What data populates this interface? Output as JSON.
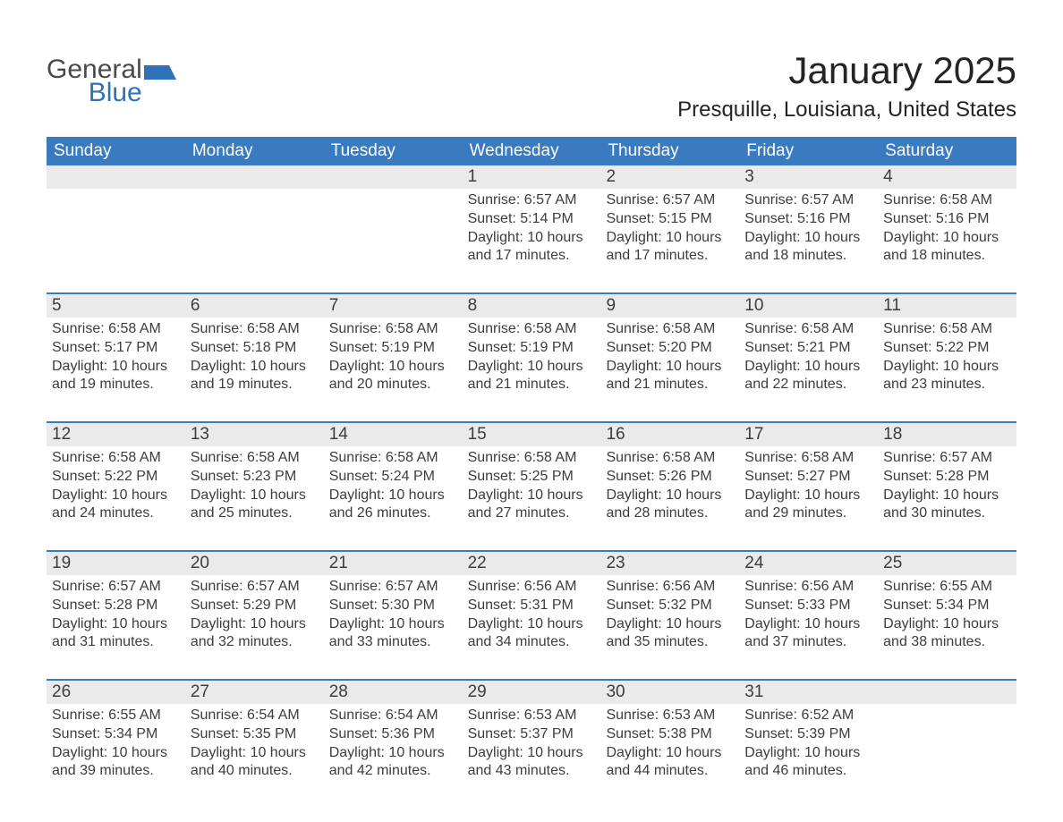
{
  "logo": {
    "general": "General",
    "blue": "Blue",
    "accent_color": "#2f72b8",
    "text_color": "#4a4a4a"
  },
  "title": "January 2025",
  "location": "Presquille, Louisiana, United States",
  "colors": {
    "header_bg": "#3a7abf",
    "header_text": "#ffffff",
    "daynum_bg": "#eaeaea",
    "body_text": "#3d3d3d",
    "week_border": "#3a7abf",
    "page_bg": "#ffffff"
  },
  "fonts": {
    "title_size_pt": 42,
    "location_size_pt": 24,
    "day_header_size_pt": 19,
    "day_num_size_pt": 19,
    "detail_size_pt": 16
  },
  "day_headers": [
    "Sunday",
    "Monday",
    "Tuesday",
    "Wednesday",
    "Thursday",
    "Friday",
    "Saturday"
  ],
  "weeks": [
    [
      {
        "blank": true
      },
      {
        "blank": true
      },
      {
        "blank": true
      },
      {
        "day": "1",
        "sunrise": "6:57 AM",
        "sunset": "5:14 PM",
        "daylight": "10 hours and 17 minutes."
      },
      {
        "day": "2",
        "sunrise": "6:57 AM",
        "sunset": "5:15 PM",
        "daylight": "10 hours and 17 minutes."
      },
      {
        "day": "3",
        "sunrise": "6:57 AM",
        "sunset": "5:16 PM",
        "daylight": "10 hours and 18 minutes."
      },
      {
        "day": "4",
        "sunrise": "6:58 AM",
        "sunset": "5:16 PM",
        "daylight": "10 hours and 18 minutes."
      }
    ],
    [
      {
        "day": "5",
        "sunrise": "6:58 AM",
        "sunset": "5:17 PM",
        "daylight": "10 hours and 19 minutes."
      },
      {
        "day": "6",
        "sunrise": "6:58 AM",
        "sunset": "5:18 PM",
        "daylight": "10 hours and 19 minutes."
      },
      {
        "day": "7",
        "sunrise": "6:58 AM",
        "sunset": "5:19 PM",
        "daylight": "10 hours and 20 minutes."
      },
      {
        "day": "8",
        "sunrise": "6:58 AM",
        "sunset": "5:19 PM",
        "daylight": "10 hours and 21 minutes."
      },
      {
        "day": "9",
        "sunrise": "6:58 AM",
        "sunset": "5:20 PM",
        "daylight": "10 hours and 21 minutes."
      },
      {
        "day": "10",
        "sunrise": "6:58 AM",
        "sunset": "5:21 PM",
        "daylight": "10 hours and 22 minutes."
      },
      {
        "day": "11",
        "sunrise": "6:58 AM",
        "sunset": "5:22 PM",
        "daylight": "10 hours and 23 minutes."
      }
    ],
    [
      {
        "day": "12",
        "sunrise": "6:58 AM",
        "sunset": "5:22 PM",
        "daylight": "10 hours and 24 minutes."
      },
      {
        "day": "13",
        "sunrise": "6:58 AM",
        "sunset": "5:23 PM",
        "daylight": "10 hours and 25 minutes."
      },
      {
        "day": "14",
        "sunrise": "6:58 AM",
        "sunset": "5:24 PM",
        "daylight": "10 hours and 26 minutes."
      },
      {
        "day": "15",
        "sunrise": "6:58 AM",
        "sunset": "5:25 PM",
        "daylight": "10 hours and 27 minutes."
      },
      {
        "day": "16",
        "sunrise": "6:58 AM",
        "sunset": "5:26 PM",
        "daylight": "10 hours and 28 minutes."
      },
      {
        "day": "17",
        "sunrise": "6:58 AM",
        "sunset": "5:27 PM",
        "daylight": "10 hours and 29 minutes."
      },
      {
        "day": "18",
        "sunrise": "6:57 AM",
        "sunset": "5:28 PM",
        "daylight": "10 hours and 30 minutes."
      }
    ],
    [
      {
        "day": "19",
        "sunrise": "6:57 AM",
        "sunset": "5:28 PM",
        "daylight": "10 hours and 31 minutes."
      },
      {
        "day": "20",
        "sunrise": "6:57 AM",
        "sunset": "5:29 PM",
        "daylight": "10 hours and 32 minutes."
      },
      {
        "day": "21",
        "sunrise": "6:57 AM",
        "sunset": "5:30 PM",
        "daylight": "10 hours and 33 minutes."
      },
      {
        "day": "22",
        "sunrise": "6:56 AM",
        "sunset": "5:31 PM",
        "daylight": "10 hours and 34 minutes."
      },
      {
        "day": "23",
        "sunrise": "6:56 AM",
        "sunset": "5:32 PM",
        "daylight": "10 hours and 35 minutes."
      },
      {
        "day": "24",
        "sunrise": "6:56 AM",
        "sunset": "5:33 PM",
        "daylight": "10 hours and 37 minutes."
      },
      {
        "day": "25",
        "sunrise": "6:55 AM",
        "sunset": "5:34 PM",
        "daylight": "10 hours and 38 minutes."
      }
    ],
    [
      {
        "day": "26",
        "sunrise": "6:55 AM",
        "sunset": "5:34 PM",
        "daylight": "10 hours and 39 minutes."
      },
      {
        "day": "27",
        "sunrise": "6:54 AM",
        "sunset": "5:35 PM",
        "daylight": "10 hours and 40 minutes."
      },
      {
        "day": "28",
        "sunrise": "6:54 AM",
        "sunset": "5:36 PM",
        "daylight": "10 hours and 42 minutes."
      },
      {
        "day": "29",
        "sunrise": "6:53 AM",
        "sunset": "5:37 PM",
        "daylight": "10 hours and 43 minutes."
      },
      {
        "day": "30",
        "sunrise": "6:53 AM",
        "sunset": "5:38 PM",
        "daylight": "10 hours and 44 minutes."
      },
      {
        "day": "31",
        "sunrise": "6:52 AM",
        "sunset": "5:39 PM",
        "daylight": "10 hours and 46 minutes."
      },
      {
        "blank": true
      }
    ]
  ],
  "labels": {
    "sunrise": "Sunrise: ",
    "sunset": "Sunset: ",
    "daylight": "Daylight: "
  }
}
